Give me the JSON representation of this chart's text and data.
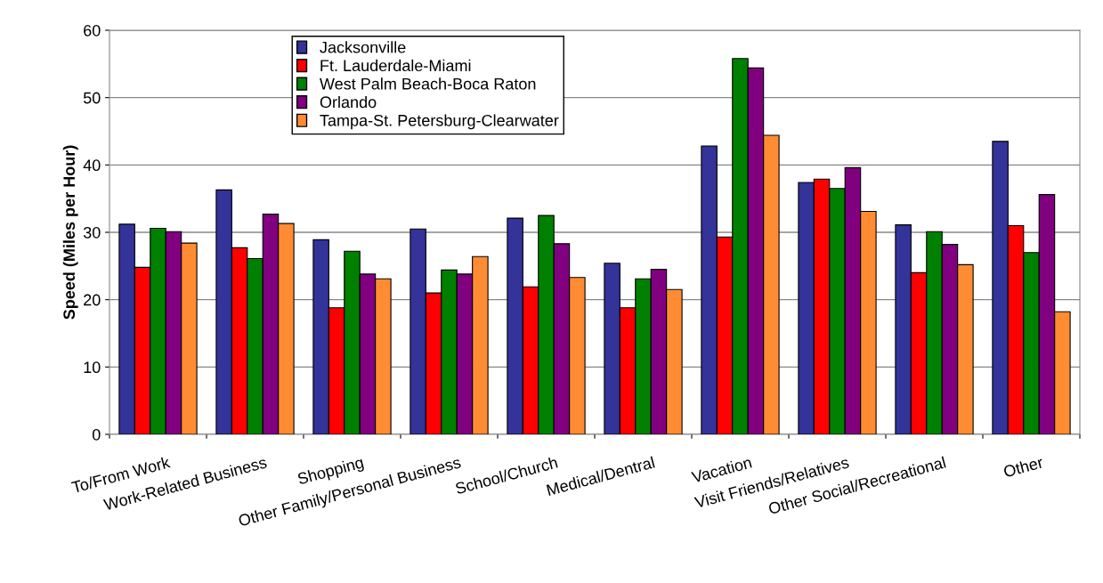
{
  "chart_data": {
    "type": "bar",
    "ylabel": "Speed (Miles per Hour)",
    "categories": [
      "To/From Work",
      "Work-Related Business",
      "Shopping",
      "Other Family/Personal Business",
      "School/Church",
      "Medical/Dentral",
      "Vacation",
      "Visit Friends/Relatives",
      "Other Social/Recreational",
      "Other"
    ],
    "series": [
      {
        "name": "Jacksonville",
        "color": "#333399",
        "values": [
          31.2,
          36.3,
          28.9,
          30.5,
          32.1,
          25.4,
          42.8,
          37.4,
          31.1,
          43.5
        ]
      },
      {
        "name": "Ft. Lauderdale-Miami",
        "color": "#ff0000",
        "values": [
          24.8,
          27.7,
          18.8,
          21.0,
          21.9,
          18.8,
          29.3,
          37.9,
          24.0,
          31.0
        ]
      },
      {
        "name": "West Palm Beach-Boca Raton",
        "color": "#008000",
        "values": [
          30.6,
          26.1,
          27.2,
          24.4,
          32.5,
          23.1,
          55.8,
          36.5,
          30.1,
          27.0
        ]
      },
      {
        "name": "Orlando",
        "color": "#800080",
        "values": [
          30.1,
          32.7,
          23.8,
          23.8,
          28.3,
          24.5,
          54.4,
          39.6,
          28.2,
          35.6
        ]
      },
      {
        "name": "Tampa-St. Petersburg-Clearwater",
        "color": "#ff8c33",
        "values": [
          28.4,
          31.3,
          23.1,
          26.4,
          23.3,
          21.5,
          44.4,
          33.1,
          25.2,
          18.2
        ]
      }
    ],
    "ylim": [
      0,
      60
    ],
    "yticks": [
      0,
      10,
      20,
      30,
      40,
      50,
      60
    ],
    "grid": "y",
    "legend": "top"
  }
}
